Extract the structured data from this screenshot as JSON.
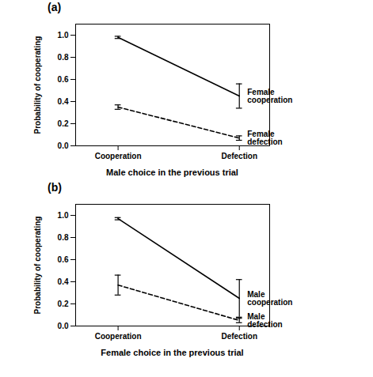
{
  "chart_data": [
    {
      "type": "line",
      "title": "(a)",
      "x_label": "Male choice in the previous trial",
      "y_label": "Probability of cooperating",
      "categories": [
        "Cooperation",
        "Defection"
      ],
      "series": [
        {
          "name": "Female cooperation",
          "color": "#000000",
          "line_style": "solid",
          "values": [
            0.98,
            0.45
          ],
          "errors": [
            0.01,
            0.11
          ]
        },
        {
          "name": "Female defection",
          "color": "#000000",
          "line_style": "dashed",
          "values": [
            0.35,
            0.07
          ],
          "errors": [
            0.02,
            0.02
          ]
        }
      ],
      "ylim": [
        0,
        1.1
      ],
      "yticks": [
        {
          "value": 0,
          "label": "0.0"
        },
        {
          "value": 0.2,
          "label": "0.2"
        },
        {
          "value": 0.4,
          "label": "0.4"
        },
        {
          "value": 0.6,
          "label": "0.6"
        },
        {
          "value": 0.8,
          "label": "0.8"
        },
        {
          "value": 1,
          "label": "1.0"
        }
      ],
      "grid": false
    },
    {
      "type": "line",
      "title": "(b)",
      "x_label": "Female choice in the previous trial",
      "y_label": "Probability of cooperating",
      "categories": [
        "Cooperation",
        "Defection"
      ],
      "series": [
        {
          "name": "Male cooperation",
          "color": "#000000",
          "line_style": "solid",
          "values": [
            0.97,
            0.25
          ],
          "errors": [
            0.01,
            0.17
          ]
        },
        {
          "name": "Male defection",
          "color": "#000000",
          "line_style": "dashed",
          "values": [
            0.37,
            0.05
          ],
          "errors": [
            0.09,
            0.02
          ]
        }
      ],
      "ylim": [
        0,
        1.1
      ],
      "yticks": [
        {
          "value": 0,
          "label": "0.0"
        },
        {
          "value": 0.2,
          "label": "0.2"
        },
        {
          "value": 0.4,
          "label": "0.4"
        },
        {
          "value": 0.6,
          "label": "0.6"
        },
        {
          "value": 0.8,
          "label": "0.8"
        },
        {
          "value": 1,
          "label": "1.0"
        }
      ],
      "grid": false
    }
  ]
}
